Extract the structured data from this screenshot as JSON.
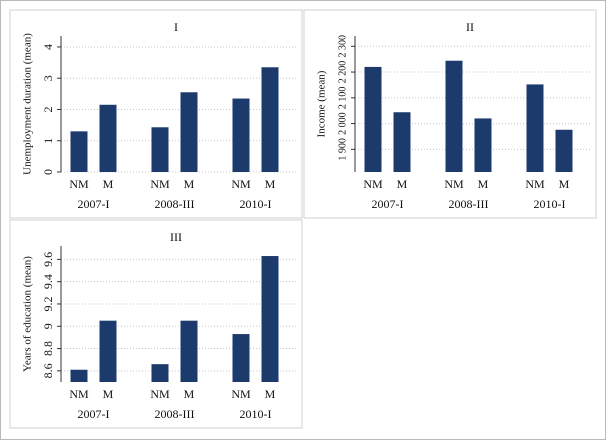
{
  "chart_data": [
    {
      "type": "bar",
      "title": "I",
      "y_label": "Unemployment duration (mean)",
      "groups": [
        "2007-I",
        "2008-III",
        "2010-I"
      ],
      "categories": [
        "NM",
        "M",
        "NM",
        "M",
        "NM",
        "M"
      ],
      "values": [
        1.3,
        2.15,
        1.43,
        2.55,
        2.35,
        3.35
      ],
      "color": "#1c3a6b",
      "ylim": [
        0,
        4.35
      ],
      "yticks": [
        0,
        1,
        2,
        3,
        4
      ],
      "grid": true
    },
    {
      "type": "bar",
      "title": "II",
      "y_label": "Income (mean)",
      "groups": [
        "2007-I",
        "2008-III",
        "2010-I"
      ],
      "categories": [
        "NM",
        "M",
        "NM",
        "M",
        "NM",
        "M"
      ],
      "values": [
        2220,
        2044,
        2244,
        2020,
        2152,
        1976
      ],
      "color": "#1c3a6b",
      "ylim": [
        1812,
        2340
      ],
      "yticks": [
        {
          "value": 1900,
          "label": "1 900"
        },
        {
          "value": 2000,
          "label": "2 000"
        },
        {
          "value": 2100,
          "label": "2 100"
        },
        {
          "value": 2200,
          "label": "2 200"
        },
        {
          "value": 2300,
          "label": "2 300"
        }
      ],
      "grid": true
    },
    {
      "type": "bar",
      "title": "III",
      "y_label": "Years of education (mean)",
      "groups": [
        "2007-I",
        "2008-III",
        "2010-I"
      ],
      "categories": [
        "NM",
        "M",
        "NM",
        "M",
        "NM",
        "M"
      ],
      "values": [
        8.61,
        9.05,
        8.66,
        9.05,
        8.93,
        9.63
      ],
      "color": "#1c3a6b",
      "ylim": [
        8.5,
        9.72
      ],
      "yticks": [
        8.6,
        8.8,
        9,
        9.2,
        9.4,
        9.6
      ],
      "grid": true
    }
  ]
}
